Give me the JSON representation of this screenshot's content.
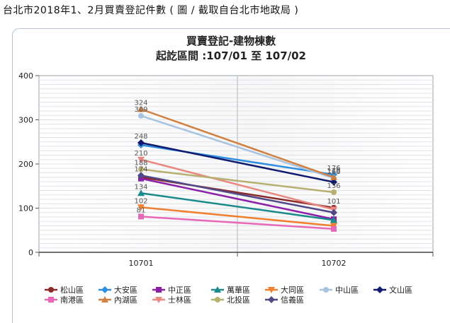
{
  "caption": "台北市2018年1、2月買賣登記件數 ( 圖 / 截取自台北市地政局 )",
  "chart_data": {
    "type": "line",
    "title": "買賣登記-建物棟數",
    "subtitle": "起訖區間 :107/01 至 107/02",
    "categories": [
      "10701",
      "10702"
    ],
    "ylim": [
      0,
      400
    ],
    "yticks": [
      0,
      100,
      200,
      300,
      400
    ],
    "grid": true,
    "legend_position": "bottom",
    "series": [
      {
        "name": "松山區",
        "values": [
          170,
          101
        ],
        "color": "#8b2a2a",
        "marker": "circle",
        "labels": [
          "",
          "101"
        ]
      },
      {
        "name": "大安區",
        "values": [
          243,
          176
        ],
        "color": "#2f8fe0",
        "marker": "diamond",
        "labels": [
          "",
          "176"
        ]
      },
      {
        "name": "中正區",
        "values": [
          167,
          75
        ],
        "color": "#8b1fa8",
        "marker": "square",
        "labels": [
          "",
          ""
        ]
      },
      {
        "name": "萬華區",
        "values": [
          134,
          73
        ],
        "color": "#1a8a8a",
        "marker": "triangle",
        "labels": [
          "134",
          ""
        ]
      },
      {
        "name": "大同區",
        "values": [
          102,
          60
        ],
        "color": "#f08030",
        "marker": "triangle-down",
        "labels": [
          "102",
          ""
        ]
      },
      {
        "name": "中山區",
        "values": [
          309,
          168
        ],
        "color": "#a8c4e0",
        "marker": "circle",
        "labels": [
          "309",
          "168"
        ]
      },
      {
        "name": "文山區",
        "values": [
          248,
          159
        ],
        "color": "#101a6e",
        "marker": "diamond",
        "labels": [
          "248",
          ""
        ]
      },
      {
        "name": "南港區",
        "values": [
          81,
          53
        ],
        "color": "#e868b8",
        "marker": "square",
        "labels": [
          "81",
          ""
        ]
      },
      {
        "name": "內湖區",
        "values": [
          324,
          170
        ],
        "color": "#d08040",
        "marker": "triangle",
        "labels": [
          "324",
          "170"
        ]
      },
      {
        "name": "士林區",
        "values": [
          210,
          97
        ],
        "color": "#e88880",
        "marker": "triangle-down",
        "labels": [
          "210",
          ""
        ]
      },
      {
        "name": "北投區",
        "values": [
          188,
          136
        ],
        "color": "#b8b070",
        "marker": "circle",
        "labels": [
          "188",
          "136"
        ]
      },
      {
        "name": "信義區",
        "values": [
          174,
          90
        ],
        "color": "#504888",
        "marker": "diamond",
        "labels": [
          "174",
          ""
        ]
      }
    ]
  }
}
